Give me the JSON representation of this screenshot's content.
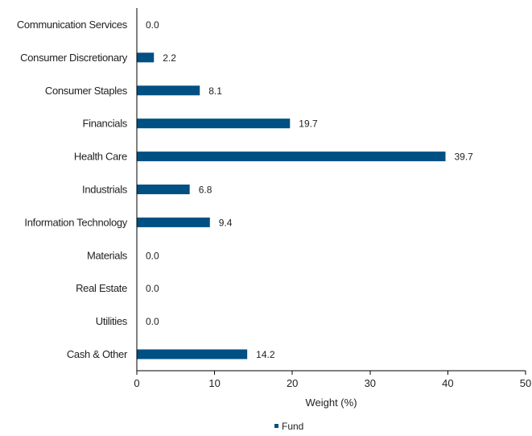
{
  "chart_data": {
    "type": "bar",
    "orientation": "horizontal",
    "categories": [
      "Communication Services",
      "Consumer Discretionary",
      "Consumer Staples",
      "Financials",
      "Health Care",
      "Industrials",
      "Information Technology",
      "Materials",
      "Real Estate",
      "Utilities",
      "Cash & Other"
    ],
    "series": [
      {
        "name": "Fund",
        "values": [
          0.0,
          2.2,
          8.1,
          19.7,
          39.7,
          6.8,
          9.4,
          0.0,
          0.0,
          0.0,
          14.2
        ],
        "value_labels": [
          "0.0",
          "2.2",
          "8.1",
          "19.7",
          "39.7",
          "6.8",
          "9.4",
          "0.0",
          "0.0",
          "0.0",
          "14.2"
        ],
        "color": "#005083"
      }
    ],
    "xlabel": "Weight (%)",
    "ylabel": "",
    "xlim": [
      0,
      50
    ],
    "xticks": [
      0,
      10,
      20,
      30,
      40,
      50
    ],
    "grid": false,
    "legend": "bottom-center"
  }
}
